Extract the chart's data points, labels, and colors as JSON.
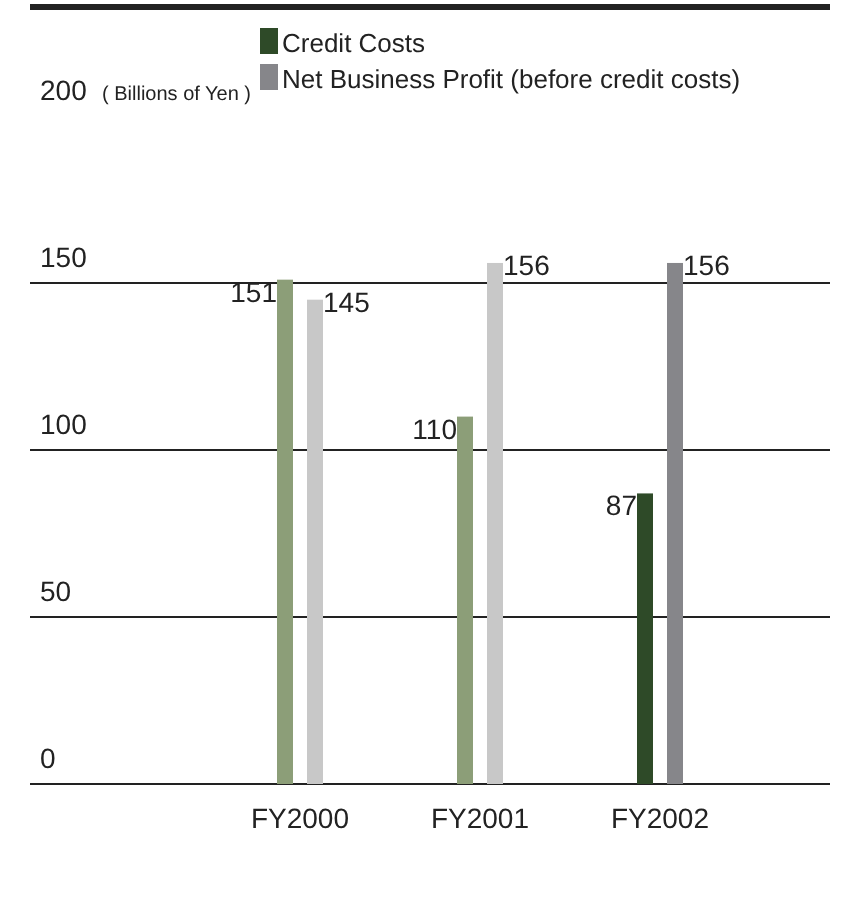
{
  "chart_data": {
    "type": "bar",
    "ylabel": "( Billions of Yen )",
    "categories": [
      "FY2000",
      "FY2001",
      "FY2002"
    ],
    "series": [
      {
        "name": "Credit Costs",
        "color": "#2e4a28",
        "colors": [
          "#8c9e78",
          "#8c9e78",
          "#2e4a28"
        ],
        "values": [
          151,
          110,
          87
        ]
      },
      {
        "name": "Net Business Profit (before credit costs)",
        "color": "#86868a",
        "colors": [
          "#c8c8c8",
          "#c8c8c8",
          "#86868a"
        ],
        "values": [
          145,
          156,
          156
        ]
      }
    ],
    "ylim": [
      0,
      200
    ],
    "yticks": [
      0,
      50,
      100,
      150,
      200
    ],
    "grid": "y",
    "legend": "top",
    "data_labels": true
  }
}
